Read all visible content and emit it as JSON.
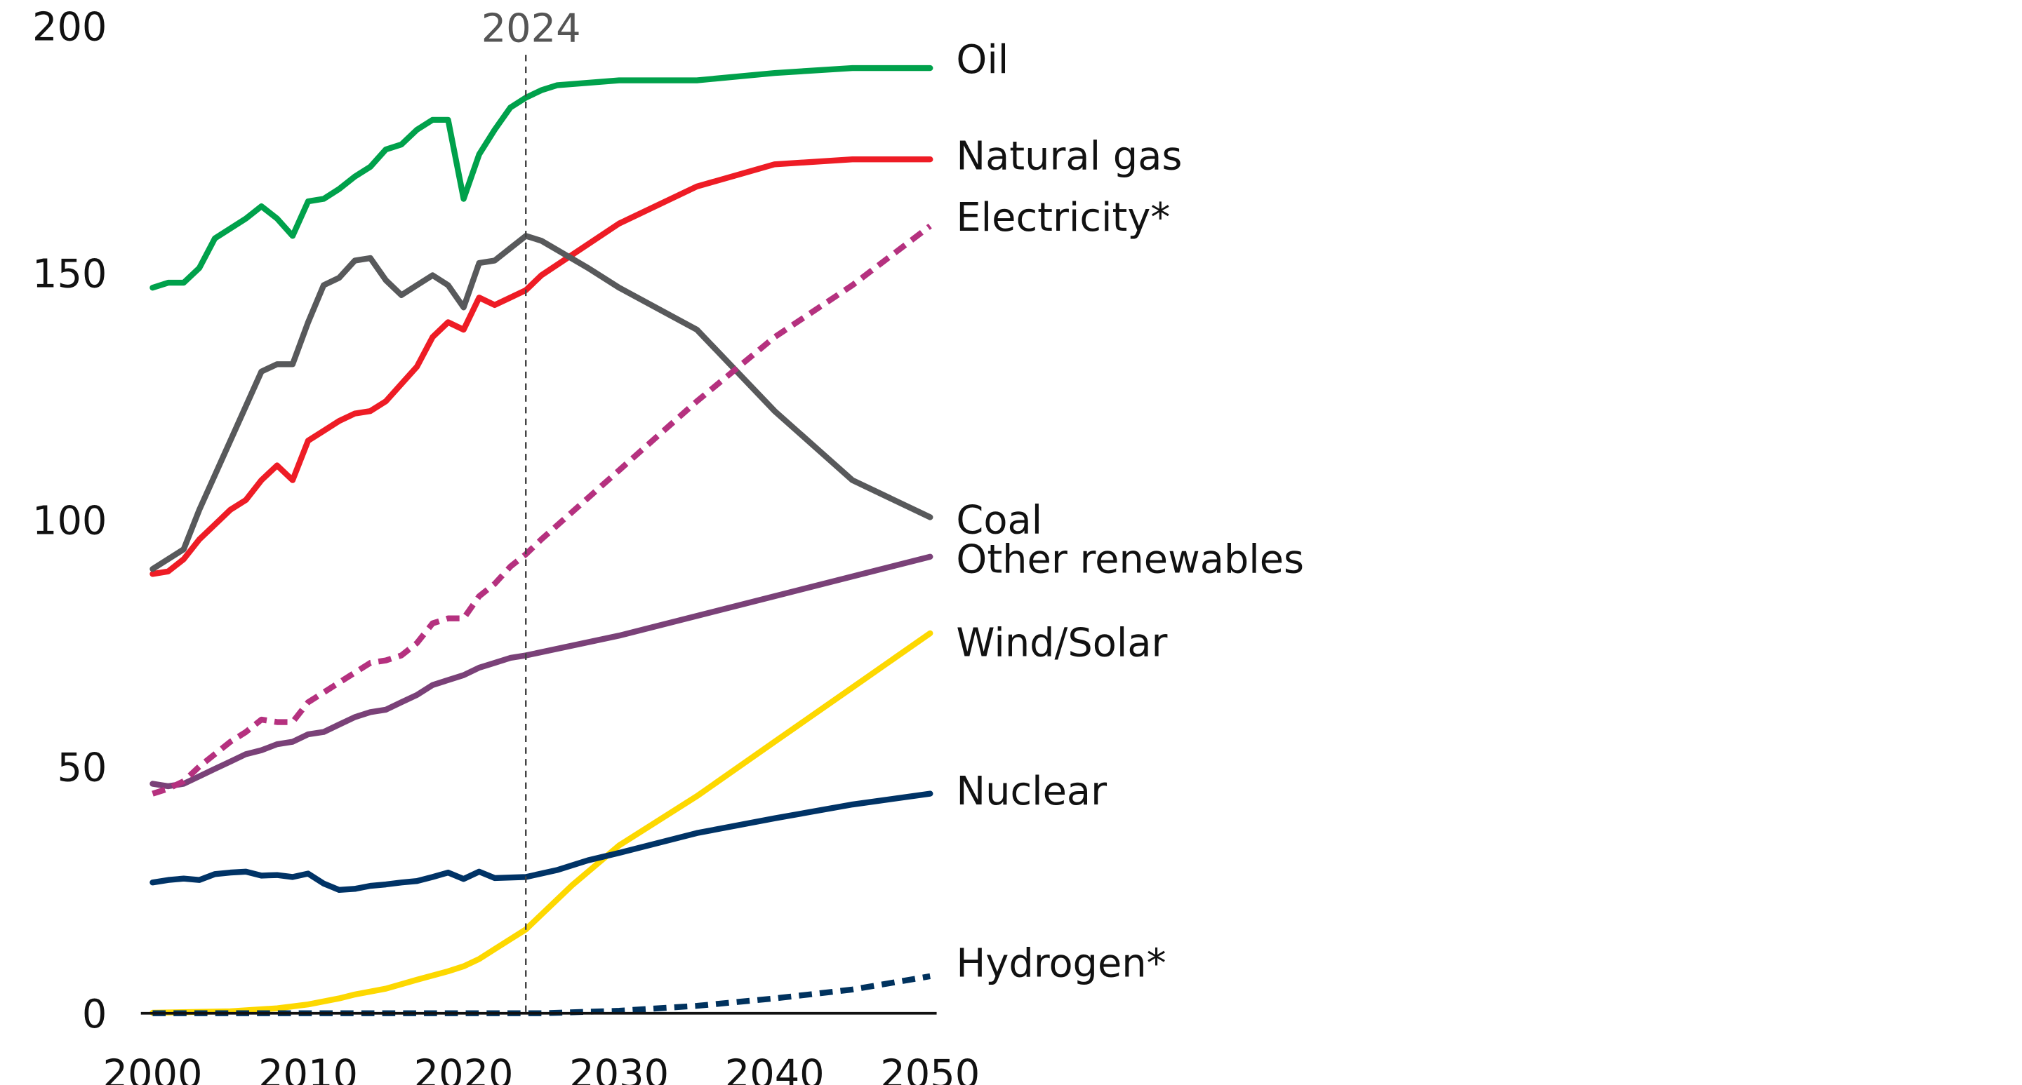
{
  "chart_data": {
    "type": "line",
    "title": "",
    "xlabel": "",
    "ylabel": "",
    "xlim": [
      2000,
      2050
    ],
    "ylim": [
      0,
      200
    ],
    "x_ticks": [
      "2000",
      "2010",
      "2020",
      "2030",
      "2040",
      "2050"
    ],
    "y_ticks": [
      "0",
      "50",
      "100",
      "150",
      "200"
    ],
    "grid": false,
    "legend": "inline labels at right end of lines",
    "annotation": {
      "year": 2024,
      "label": "2024",
      "style": "dashed vertical line"
    },
    "series": [
      {
        "name": "Oil",
        "color": "#00a14b",
        "dashed": false,
        "x": [
          2000,
          2001,
          2002,
          2003,
          2004,
          2005,
          2006,
          2007,
          2008,
          2009,
          2010,
          2011,
          2012,
          2013,
          2014,
          2015,
          2016,
          2017,
          2018,
          2019,
          2020,
          2021,
          2022,
          2023,
          2024,
          2025,
          2026,
          2028,
          2030,
          2035,
          2040,
          2045,
          2050
        ],
        "y": [
          147,
          148,
          148,
          151,
          157,
          159,
          161,
          163.5,
          161,
          157.5,
          164.5,
          165,
          167,
          169.5,
          171.5,
          175,
          176,
          179,
          181,
          181,
          165,
          174,
          179,
          183.5,
          185.5,
          187,
          188,
          188.5,
          189,
          189,
          190.5,
          191.5,
          191.5
        ]
      },
      {
        "name": "Natural gas",
        "color": "#ee1c25",
        "dashed": false,
        "x": [
          2000,
          2001,
          2002,
          2003,
          2004,
          2005,
          2006,
          2007,
          2008,
          2009,
          2010,
          2011,
          2012,
          2013,
          2014,
          2015,
          2016,
          2017,
          2018,
          2019,
          2020,
          2021,
          2022,
          2023,
          2024,
          2025,
          2030,
          2035,
          2040,
          2045,
          2050
        ],
        "y": [
          89,
          89.5,
          92,
          96,
          99,
          102,
          104,
          108,
          111,
          108,
          116,
          118,
          120,
          121.5,
          122,
          124,
          127.5,
          131,
          137,
          140,
          138.5,
          145,
          143.5,
          145,
          146.5,
          149.5,
          160,
          167.5,
          172,
          173,
          173
        ]
      },
      {
        "name": "Electricity*",
        "color": "#b5317f",
        "dashed": true,
        "x": [
          2000,
          2001,
          2002,
          2003,
          2004,
          2005,
          2006,
          2007,
          2008,
          2009,
          2010,
          2011,
          2012,
          2013,
          2014,
          2015,
          2016,
          2017,
          2018,
          2019,
          2020,
          2021,
          2022,
          2023,
          2024,
          2025,
          2030,
          2035,
          2040,
          2045,
          2050
        ],
        "y": [
          44.5,
          45.5,
          47,
          50,
          52.5,
          55,
          57,
          59.5,
          59,
          59,
          63,
          65,
          67,
          69,
          71,
          71.5,
          72.5,
          75,
          79,
          80,
          80,
          84.5,
          87,
          90.5,
          93,
          96,
          110,
          124,
          137,
          147.5,
          159.5
        ]
      },
      {
        "name": "Coal",
        "color": "#58595b",
        "dashed": false,
        "x": [
          2000,
          2002,
          2003,
          2004,
          2005,
          2006,
          2007,
          2008,
          2009,
          2010,
          2011,
          2012,
          2013,
          2014,
          2015,
          2016,
          2017,
          2018,
          2019,
          2020,
          2021,
          2022,
          2023,
          2024,
          2025,
          2028,
          2030,
          2035,
          2040,
          2045,
          2050
        ],
        "y": [
          90,
          94,
          102,
          109,
          116,
          123,
          130,
          131.5,
          131.5,
          140,
          147.5,
          149,
          152.5,
          153,
          148.5,
          145.5,
          147.5,
          149.5,
          147.5,
          143,
          152,
          152.5,
          155,
          157.5,
          156.5,
          151,
          147,
          138.5,
          122,
          108,
          100.5
        ]
      },
      {
        "name": "Other renewables",
        "color": "#7a4178",
        "dashed": false,
        "x": [
          2000,
          2001,
          2002,
          2003,
          2004,
          2005,
          2006,
          2007,
          2008,
          2009,
          2010,
          2011,
          2012,
          2013,
          2014,
          2015,
          2016,
          2017,
          2018,
          2019,
          2020,
          2021,
          2022,
          2023,
          2024,
          2030,
          2040,
          2050
        ],
        "y": [
          46.5,
          46,
          46.5,
          48,
          49.5,
          51,
          52.5,
          53.3,
          54.5,
          55,
          56.5,
          57,
          58.5,
          60,
          61,
          61.5,
          63,
          64.5,
          66.5,
          67.5,
          68.5,
          70,
          71,
          72,
          72.5,
          76.5,
          84.5,
          92.5
        ]
      },
      {
        "name": "Wind/Solar",
        "color": "#fdd800",
        "dashed": false,
        "x": [
          2000,
          2005,
          2008,
          2010,
          2012,
          2013,
          2015,
          2017,
          2019,
          2020,
          2021,
          2022,
          2023,
          2024,
          2025,
          2027,
          2030,
          2035,
          2040,
          2045,
          2050
        ],
        "y": [
          0.1,
          0.4,
          1,
          1.8,
          3,
          3.8,
          5,
          6.8,
          8.5,
          9.5,
          11,
          13,
          15,
          17,
          20,
          26,
          34,
          44,
          55,
          66,
          77
        ]
      },
      {
        "name": "Nuclear",
        "color": "#003366",
        "dashed": false,
        "x": [
          2000,
          2001,
          2002,
          2003,
          2004,
          2005,
          2006,
          2007,
          2008,
          2009,
          2010,
          2011,
          2012,
          2013,
          2014,
          2015,
          2016,
          2017,
          2018,
          2019,
          2020,
          2021,
          2022,
          2023,
          2024,
          2026,
          2028,
          2030,
          2035,
          2040,
          2045,
          2050
        ],
        "y": [
          26.5,
          27,
          27.3,
          27,
          28.2,
          28.5,
          28.7,
          27.9,
          28,
          27.6,
          28.3,
          26.3,
          25,
          25.2,
          25.8,
          26.1,
          26.5,
          26.8,
          27.6,
          28.5,
          27.2,
          28.7,
          27.4,
          27.5,
          27.6,
          29,
          31,
          32.5,
          36.5,
          39.5,
          42.3,
          44.5
        ]
      },
      {
        "name": "Hydrogen*",
        "color": "#00325e",
        "dashed": true,
        "x": [
          2000,
          2025,
          2030,
          2035,
          2040,
          2045,
          2050
        ],
        "y": [
          0,
          0,
          0.5,
          1.5,
          3,
          4.8,
          7.5
        ]
      }
    ]
  }
}
